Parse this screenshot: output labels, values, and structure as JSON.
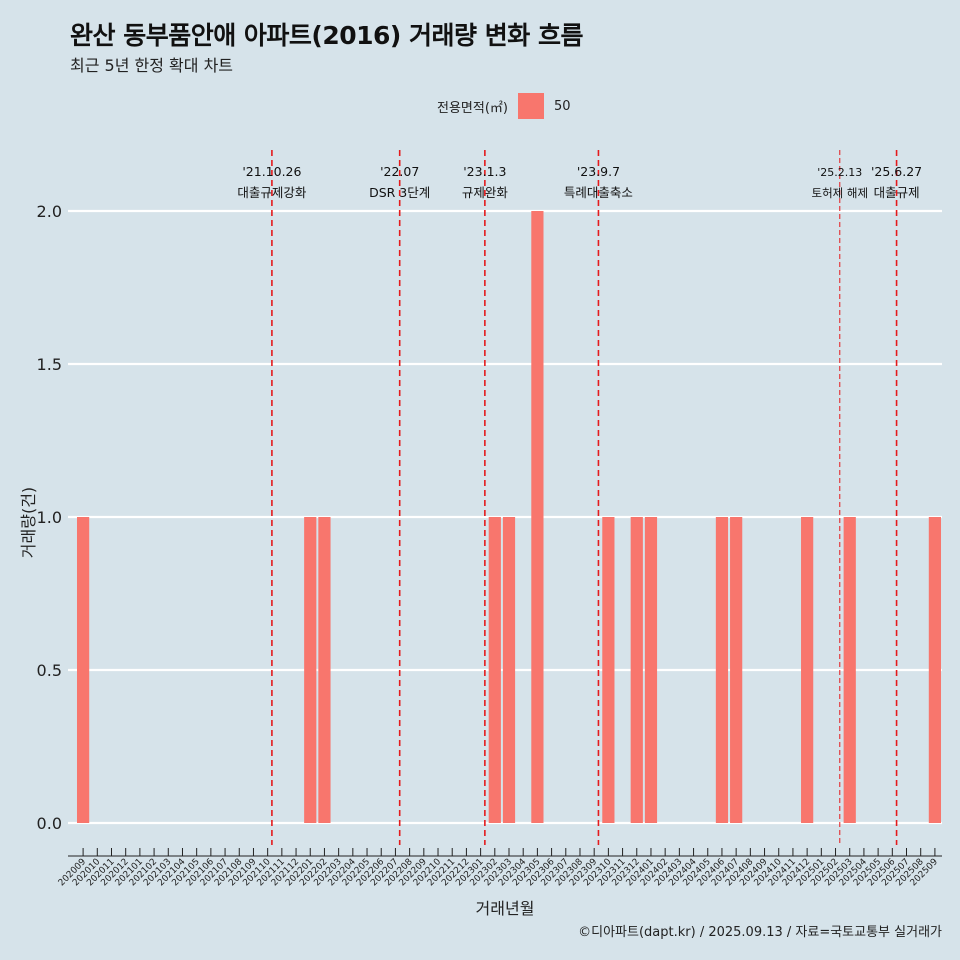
{
  "title": "완산 동부품안애 아파트(2016) 거래량 변화 흐름",
  "subtitle": "최근 5년 한정 확대 차트",
  "caption": "©디아파트(dapt.kr) / 2025.09.13 / 자료=국토교통부 실거래가",
  "legend": {
    "title": "전용면적(㎡)",
    "item": "50",
    "color": "#f8766d"
  },
  "colors": {
    "background": "#d6e3ea",
    "bar": "#f8766d",
    "grid": "#ffffff",
    "event_line": "#e41a1c"
  },
  "chart_data": {
    "type": "bar",
    "title": "완산 동부품안애 아파트(2016) 거래량 변화 흐름",
    "subtitle": "최근 5년 한정 확대 차트",
    "xlabel": "거래년월",
    "ylabel": "거래량(건)",
    "ylim": [
      0,
      2.2
    ],
    "yticks": [
      "0.0",
      "0.5",
      "1.0",
      "1.5",
      "2.0"
    ],
    "categories": [
      "202009",
      "202010",
      "202011",
      "202012",
      "202101",
      "202102",
      "202103",
      "202104",
      "202105",
      "202106",
      "202107",
      "202108",
      "202109",
      "202110",
      "202111",
      "202112",
      "202201",
      "202202",
      "202203",
      "202204",
      "202205",
      "202206",
      "202207",
      "202208",
      "202209",
      "202210",
      "202211",
      "202212",
      "202301",
      "202302",
      "202303",
      "202304",
      "202305",
      "202306",
      "202307",
      "202308",
      "202309",
      "202310",
      "202311",
      "202312",
      "202401",
      "202402",
      "202403",
      "202404",
      "202405",
      "202406",
      "202407",
      "202408",
      "202409",
      "202410",
      "202411",
      "202412",
      "202501",
      "202502",
      "202503",
      "202504",
      "202505",
      "202506",
      "202507",
      "202508",
      "202509"
    ],
    "series": [
      {
        "name": "50",
        "values": [
          1,
          0,
          0,
          0,
          0,
          0,
          0,
          0,
          0,
          0,
          0,
          0,
          0,
          0,
          0,
          0,
          1,
          1,
          0,
          0,
          0,
          0,
          0,
          0,
          0,
          0,
          0,
          0,
          0,
          1,
          1,
          0,
          2,
          0,
          0,
          0,
          0,
          1,
          0,
          1,
          1,
          0,
          0,
          0,
          0,
          1,
          1,
          0,
          0,
          0,
          0,
          1,
          0,
          0,
          1,
          0,
          0,
          0,
          0,
          0,
          1
        ]
      }
    ],
    "events": [
      {
        "date": "'21.10.26",
        "label": "대출규제강화",
        "x": 13.3
      },
      {
        "date": "'22.07",
        "label": "DSR 3단계",
        "x": 22.3
      },
      {
        "date": "'23.1.3",
        "label": "규제완화",
        "x": 28.3
      },
      {
        "date": "'23.9.7",
        "label": "특례대출축소",
        "x": 36.3
      },
      {
        "date": "'25.2.13",
        "label": "토허제 해제",
        "x": 53.3,
        "style": "thin"
      },
      {
        "date": "'25.6.27",
        "label": "대출규제",
        "x": 57.3
      }
    ],
    "grid": true,
    "legend_position": "top"
  }
}
